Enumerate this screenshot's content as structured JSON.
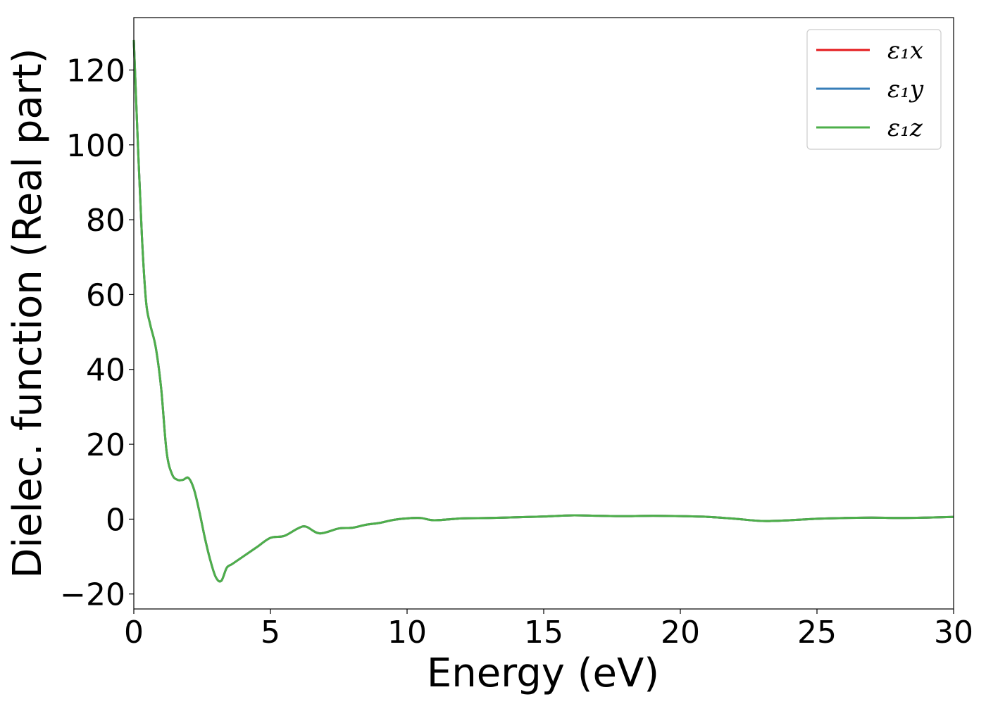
{
  "chart_data": {
    "type": "line",
    "title": "",
    "xlabel": "Energy (eV)",
    "ylabel": "Dielec. function (Real part)",
    "xlim": [
      0,
      30
    ],
    "ylim": [
      -24,
      134
    ],
    "xticks": [
      0,
      5,
      10,
      15,
      20,
      25,
      30
    ],
    "yticks": [
      -20,
      0,
      20,
      40,
      60,
      80,
      100,
      120
    ],
    "xtick_labels": [
      "0",
      "5",
      "10",
      "15",
      "20",
      "25",
      "30"
    ],
    "ytick_labels": [
      "−20",
      "0",
      "20",
      "40",
      "60",
      "80",
      "100",
      "120"
    ],
    "grid": false,
    "legend_position": "top-right",
    "legend": [
      {
        "label": "ε₁x",
        "color": "#e41a1c"
      },
      {
        "label": "ε₁y",
        "color": "#377eb8"
      },
      {
        "label": "ε₁z",
        "color": "#4daf4a"
      }
    ],
    "x": [
      0,
      0.15,
      0.3,
      0.45,
      0.6,
      0.8,
      1.0,
      1.2,
      1.4,
      1.6,
      1.8,
      2.0,
      2.2,
      2.4,
      2.6,
      2.8,
      3.0,
      3.2,
      3.4,
      3.6,
      4.0,
      4.5,
      5.0,
      5.5,
      6.0,
      6.3,
      6.8,
      7.5,
      8.0,
      8.5,
      9.0,
      9.5,
      10.0,
      10.5,
      11.0,
      12.0,
      13.0,
      14.0,
      15.0,
      16.0,
      17.0,
      18.0,
      19.0,
      20.0,
      21.0,
      22.0,
      23.0,
      24.0,
      25.0,
      26.0,
      27.0,
      28.0,
      29.0,
      30.0
    ],
    "series": [
      {
        "name": "ε₁x",
        "color": "#e41a1c",
        "values": [
          128,
          100,
          75,
          58,
          52,
          46,
          35,
          18,
          12,
          10.5,
          10.5,
          11,
          8,
          2,
          -5,
          -11,
          -15.5,
          -16.5,
          -13,
          -12,
          -10,
          -7.5,
          -5,
          -4.5,
          -2.5,
          -2,
          -3.8,
          -2.5,
          -2.3,
          -1.5,
          -1,
          -0.2,
          0.2,
          0.3,
          -0.3,
          0.2,
          0.3,
          0.5,
          0.7,
          1.0,
          0.9,
          0.8,
          0.9,
          0.8,
          0.6,
          0.1,
          -0.5,
          -0.3,
          0.1,
          0.3,
          0.4,
          0.3,
          0.4,
          0.6
        ]
      },
      {
        "name": "ε₁y",
        "color": "#377eb8",
        "values": [
          128,
          100,
          75,
          58,
          52,
          46,
          35,
          18,
          12,
          10.5,
          10.5,
          11,
          8,
          2,
          -5,
          -11,
          -15.5,
          -16.5,
          -13,
          -12,
          -10,
          -7.5,
          -5,
          -4.5,
          -2.5,
          -2,
          -3.8,
          -2.5,
          -2.3,
          -1.5,
          -1,
          -0.2,
          0.2,
          0.3,
          -0.3,
          0.2,
          0.3,
          0.5,
          0.7,
          1.0,
          0.9,
          0.8,
          0.9,
          0.8,
          0.6,
          0.1,
          -0.5,
          -0.3,
          0.1,
          0.3,
          0.4,
          0.3,
          0.4,
          0.6
        ]
      },
      {
        "name": "ε₁z",
        "color": "#4daf4a",
        "values": [
          128,
          100,
          75,
          58,
          52,
          46,
          35,
          18,
          12,
          10.5,
          10.5,
          11,
          8,
          2,
          -5,
          -11,
          -15.5,
          -16.5,
          -13,
          -12,
          -10,
          -7.5,
          -5,
          -4.5,
          -2.5,
          -2,
          -3.8,
          -2.5,
          -2.3,
          -1.5,
          -1,
          -0.2,
          0.2,
          0.3,
          -0.3,
          0.2,
          0.3,
          0.5,
          0.7,
          1.0,
          0.9,
          0.8,
          0.9,
          0.8,
          0.6,
          0.1,
          -0.5,
          -0.3,
          0.1,
          0.3,
          0.4,
          0.3,
          0.4,
          0.6
        ]
      }
    ]
  }
}
